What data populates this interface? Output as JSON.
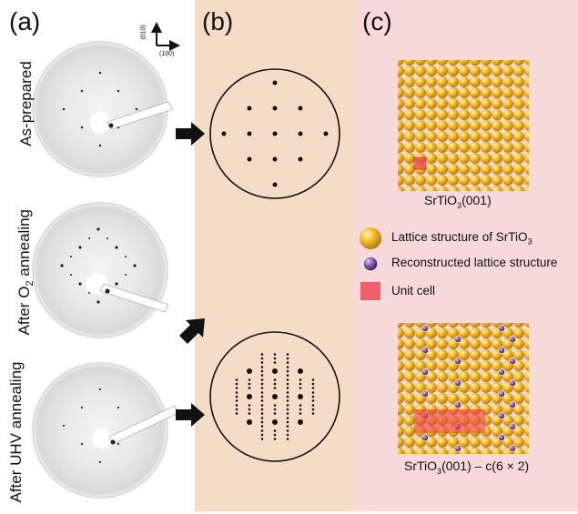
{
  "panels": {
    "a": "(a)",
    "b": "(b)",
    "c": "(c)"
  },
  "axes": {
    "x": "(100)",
    "y": "(010)"
  },
  "rows": [
    {
      "label": "As-prepared"
    },
    {
      "label_pre": "After O",
      "label_sub": "2",
      "label_post": " annealing"
    },
    {
      "label": "After UHV annealing"
    }
  ],
  "captions": {
    "top_pre": "SrTiO",
    "top_sub": "3",
    "top_post": "(001)",
    "bottom_pre": "SrTiO",
    "bottom_sub": "3",
    "bottom_post": "(001) – c(6 × 2)"
  },
  "legend": {
    "lattice_pre": "Lattice structure of SrTiO",
    "lattice_sub": "3",
    "reconstructed": "Reconstructed lattice structure",
    "unit_cell": "Unit cell"
  },
  "colors": {
    "panel_b": "#f5dcc6",
    "panel_c": "#f8d9da",
    "sphere": "#f3b21f",
    "recon": "#7a4fa0",
    "unit_cell": "#f0606a"
  }
}
